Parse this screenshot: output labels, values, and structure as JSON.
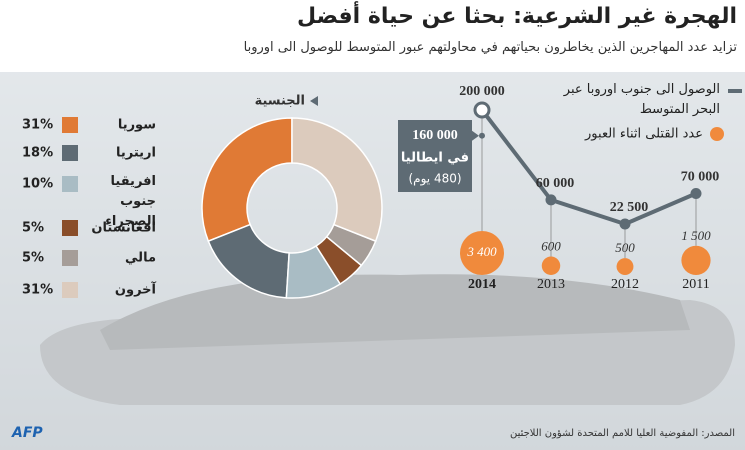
{
  "header": {
    "title": "الهجرة غير الشرعية: بحثا عن حياة أفضل",
    "subtitle": "تزايد عدد المهاجرين الذين يخاطرون بحياتهم في محاولتهم عبور المتوسط للوصول الى اوروبا"
  },
  "chart_data": [
    {
      "type": "pie",
      "title": "الجنسية",
      "categories": [
        "سوريا",
        "اريتريا",
        "افريقيا جنوب الصحراء",
        "افغانستان",
        "مالي",
        "آخرون"
      ],
      "values": [
        31,
        18,
        10,
        5,
        5,
        31
      ],
      "value_labels": [
        "31%",
        "18%",
        "10%",
        "5%",
        "5%",
        "31%"
      ],
      "colors": [
        "#e07a35",
        "#5e6b74",
        "#a9bcc4",
        "#8a4e2a",
        "#a59d98",
        "#dccbbd"
      ]
    },
    {
      "type": "line",
      "categories": [
        "2014",
        "2013",
        "2012",
        "2011"
      ],
      "series": [
        {
          "name": "الوصول الى جنوب اوروبا عبر البحر المتوسط",
          "color": "#5e6b74",
          "values": [
            200000,
            60000,
            22500,
            70000
          ],
          "value_labels": [
            "200 000",
            "60 000",
            "22 500",
            "70 000"
          ]
        },
        {
          "name": "عدد القتلى اثناء العبور",
          "color": "#f08a3c",
          "values": [
            3400,
            600,
            500,
            1500
          ],
          "value_labels": [
            "3 400",
            "600",
            "500",
            "1 500"
          ]
        }
      ],
      "annotation": {
        "value": 160000,
        "value_label": "160 000",
        "text": "في ايطاليا",
        "note": "(480 يوم)"
      }
    }
  ],
  "source": "المصدر: المفوضية العليا للامم المتحدة لشؤون اللاجئين",
  "logo": "AFP"
}
